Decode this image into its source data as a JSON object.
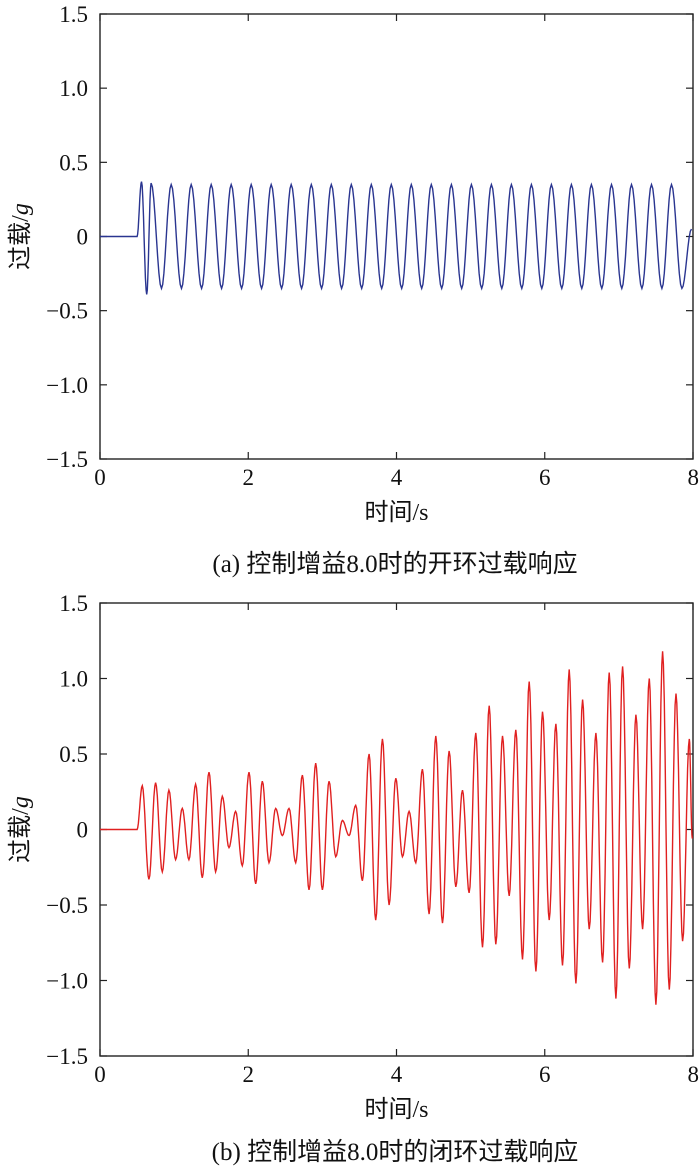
{
  "chart_data": [
    {
      "type": "line",
      "caption": "(a) 控制增益8.0时的开环过载响应",
      "xlabel": "时间/s",
      "ylabel_main": "过载/",
      "ylabel_italic": "g",
      "xlim": [
        0,
        8
      ],
      "ylim": [
        -1.5,
        1.5
      ],
      "xticks": [
        0,
        2,
        4,
        6,
        8
      ],
      "yticks": [
        -1.5,
        -1.0,
        -0.5,
        0,
        0.5,
        1.0,
        1.5
      ],
      "xtick_labels": [
        "0",
        "2",
        "4",
        "6",
        "8"
      ],
      "ytick_labels": [
        "−1.5",
        "−1.0",
        "−0.5",
        "0",
        "0.5",
        "1.0",
        "1.5"
      ],
      "grid": false,
      "series": [
        {
          "color": "#2a3590",
          "onset": 0.5,
          "frequency_hz": 3.72,
          "amplitude": 0.35,
          "first_peak": 0.37,
          "first_trough": -0.39,
          "x": [
            0,
            0.5,
            0.56,
            0.63,
            0.69,
            0.83,
            0.96,
            1.1,
            1.23,
            1.37,
            1.5,
            1.64,
            1.77,
            1.91,
            2.04,
            2.18,
            2.31,
            2.45,
            2.58,
            2.72,
            2.85,
            2.99,
            3.12,
            3.26,
            3.39,
            3.53,
            3.66,
            3.8,
            3.93,
            4.07,
            4.2,
            4.34,
            4.47,
            4.61,
            4.74,
            4.88,
            5.01,
            5.15,
            5.28,
            5.42,
            5.55,
            5.69,
            5.82,
            5.96,
            6.09,
            6.23,
            6.36,
            6.5,
            6.63,
            6.77,
            6.9,
            7.04,
            7.17,
            7.31,
            7.44,
            7.58,
            7.71,
            7.85,
            7.98
          ],
          "y": [
            0,
            0,
            0.37,
            -0.39,
            0.36,
            -0.35,
            0.35,
            -0.35,
            0.35,
            -0.35,
            0.35,
            -0.35,
            0.35,
            -0.35,
            0.35,
            -0.35,
            0.35,
            -0.35,
            0.35,
            -0.35,
            0.35,
            -0.35,
            0.35,
            -0.35,
            0.35,
            -0.35,
            0.35,
            -0.35,
            0.35,
            -0.35,
            0.35,
            -0.35,
            0.35,
            -0.35,
            0.35,
            -0.35,
            0.35,
            -0.35,
            0.35,
            -0.35,
            0.35,
            -0.35,
            0.35,
            -0.35,
            0.35,
            -0.35,
            0.35,
            -0.35,
            0.35,
            -0.35,
            0.35,
            -0.35,
            0.35,
            -0.35,
            0.35,
            -0.35,
            0.35,
            -0.35,
            0.05
          ]
        }
      ]
    },
    {
      "type": "line",
      "caption": "(b) 控制增益8.0时的闭环过载响应",
      "xlabel": "时间/s",
      "ylabel_main": "过载/",
      "ylabel_italic": "g",
      "xlim": [
        0,
        8
      ],
      "ylim": [
        -1.5,
        1.5
      ],
      "xticks": [
        0,
        2,
        4,
        6,
        8
      ],
      "yticks": [
        -1.5,
        -1.0,
        -0.5,
        0,
        0.5,
        1.0,
        1.5
      ],
      "xtick_labels": [
        "0",
        "2",
        "4",
        "6",
        "8"
      ],
      "ytick_labels": [
        "−1.5",
        "−1.0",
        "−0.5",
        "0",
        "0.5",
        "1.0",
        "1.5"
      ],
      "grid": false,
      "series": [
        {
          "color": "#e02020",
          "onset": 0.5,
          "frequency_hz": 5.5,
          "x": [
            0,
            0.5,
            0.57,
            0.66,
            0.75,
            0.84,
            0.93,
            1.02,
            1.11,
            1.2,
            1.29,
            1.38,
            1.47,
            1.56,
            1.65,
            1.74,
            1.83,
            1.92,
            2.01,
            2.1,
            2.19,
            2.28,
            2.37,
            2.46,
            2.55,
            2.64,
            2.73,
            2.82,
            2.91,
            3.0,
            3.09,
            3.18,
            3.27,
            3.36,
            3.45,
            3.54,
            3.63,
            3.72,
            3.81,
            3.9,
            3.99,
            4.08,
            4.17,
            4.26,
            4.35,
            4.44,
            4.53,
            4.62,
            4.71,
            4.8,
            4.89,
            4.98,
            5.07,
            5.16,
            5.25,
            5.34,
            5.43,
            5.52,
            5.61,
            5.7,
            5.79,
            5.88,
            5.97,
            6.06,
            6.15,
            6.24,
            6.33,
            6.42,
            6.51,
            6.6,
            6.69,
            6.78,
            6.87,
            6.96,
            7.05,
            7.14,
            7.23,
            7.32,
            7.41,
            7.5,
            7.59,
            7.68,
            7.77,
            7.86,
            7.95,
            7.99
          ],
          "y": [
            0,
            0,
            0.29,
            -0.33,
            0.31,
            -0.28,
            0.26,
            -0.2,
            0.14,
            -0.2,
            0.3,
            -0.32,
            0.38,
            -0.28,
            0.22,
            -0.12,
            0.12,
            -0.24,
            0.38,
            -0.36,
            0.32,
            -0.22,
            0.14,
            -0.04,
            0.14,
            -0.22,
            0.36,
            -0.4,
            0.44,
            -0.4,
            0.32,
            -0.18,
            0.06,
            -0.04,
            0.16,
            -0.34,
            0.5,
            -0.6,
            0.6,
            -0.5,
            0.34,
            -0.18,
            0.12,
            -0.22,
            0.4,
            -0.56,
            0.62,
            -0.62,
            0.52,
            -0.38,
            0.26,
            -0.42,
            0.64,
            -0.78,
            0.82,
            -0.76,
            0.62,
            -0.44,
            0.66,
            -0.86,
            0.98,
            -0.94,
            0.78,
            -0.6,
            0.7,
            -0.9,
            1.06,
            -1.02,
            0.86,
            -0.66,
            0.64,
            -0.88,
            1.04,
            -1.12,
            1.08,
            -0.92,
            0.76,
            -0.66,
            1.0,
            -1.16,
            1.18,
            -1.06,
            0.9,
            -0.74,
            0.6,
            -0.06
          ]
        }
      ]
    }
  ]
}
